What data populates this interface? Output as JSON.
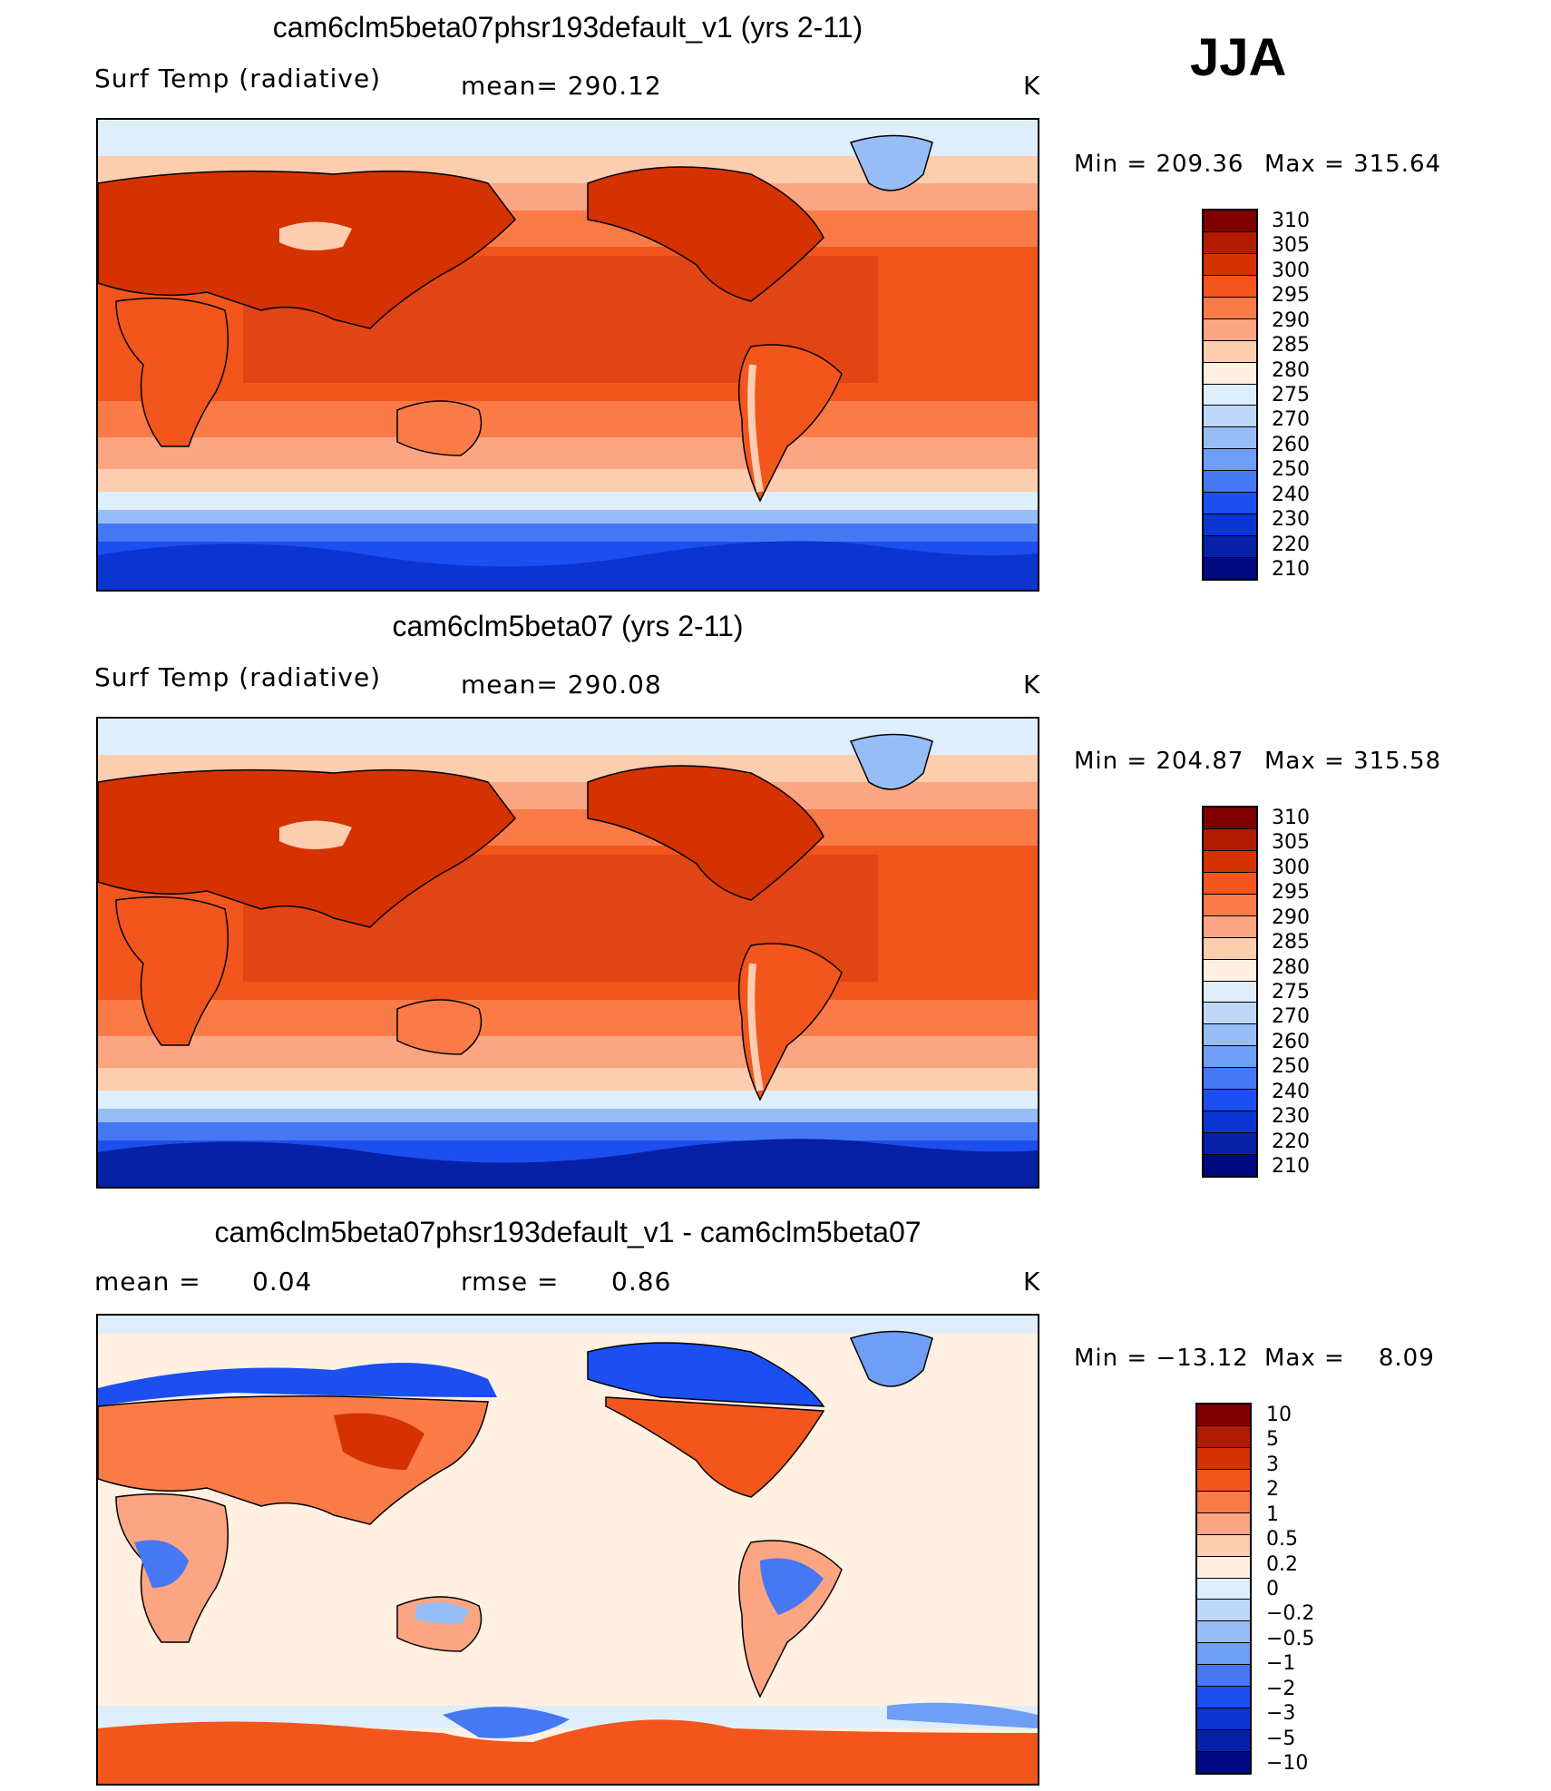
{
  "season": "JJA",
  "colors": {
    "temp_scale": [
      "#7f0000",
      "#b11c00",
      "#d43200",
      "#f2561c",
      "#fa7b48",
      "#fca583",
      "#fdcdb0",
      "#fff0e1",
      "#deeefa",
      "#bfd8fa",
      "#97bdf7",
      "#6e9ef6",
      "#4578f2",
      "#1c4ef0",
      "#0b34d0",
      "#0620a6",
      "#000a80"
    ],
    "diff_scale": [
      "#7f0000",
      "#b11c00",
      "#d43200",
      "#f2561c",
      "#fa7b48",
      "#fca583",
      "#fdcdb0",
      "#fff0e1",
      "#deeefa",
      "#bfd8fa",
      "#97bdf7",
      "#6e9ef6",
      "#4578f2",
      "#1c4ef0",
      "#0b34d0",
      "#0620a6",
      "#000a80"
    ]
  },
  "chart_data": [
    {
      "type": "heatmap",
      "title": "cam6clm5beta07phsr193default_v1 (yrs 2-11)",
      "variable": "Surf Temp (radiative)",
      "mean_text": "mean= 290.12",
      "units": "K",
      "min_text": "Min = 209.36",
      "max_text": "Max = 315.64",
      "min": 209.36,
      "max": 315.64,
      "mean": 290.12,
      "colorbar_levels": [
        "310",
        "305",
        "300",
        "295",
        "290",
        "285",
        "280",
        "275",
        "270",
        "260",
        "250",
        "240",
        "230",
        "220",
        "210"
      ],
      "projection": "global cylindrical, Pacific-centered"
    },
    {
      "type": "heatmap",
      "title": "cam6clm5beta07 (yrs 2-11)",
      "variable": "Surf Temp (radiative)",
      "mean_text": "mean= 290.08",
      "units": "K",
      "min_text": "Min = 204.87",
      "max_text": "Max = 315.58",
      "min": 204.87,
      "max": 315.58,
      "mean": 290.08,
      "colorbar_levels": [
        "310",
        "305",
        "300",
        "295",
        "290",
        "285",
        "280",
        "275",
        "270",
        "260",
        "250",
        "240",
        "230",
        "220",
        "210"
      ],
      "projection": "global cylindrical, Pacific-centered"
    },
    {
      "type": "heatmap",
      "title": "cam6clm5beta07phsr193default_v1 - cam6clm5beta07",
      "mean_label": "mean =",
      "mean_value": "0.04",
      "rmse_label": "rmse =",
      "rmse_value": "0.86",
      "units": "K",
      "min_text": "Min = −13.12",
      "max_text": "Max =    8.09",
      "min": -13.12,
      "max": 8.09,
      "mean": 0.04,
      "rmse": 0.86,
      "colorbar_levels": [
        "10",
        "5",
        "3",
        "2",
        "1",
        "0.5",
        "0.2",
        "0",
        "−0.2",
        "−0.5",
        "−1",
        "−2",
        "−3",
        "−5",
        "−10"
      ],
      "projection": "global cylindrical, Pacific-centered"
    }
  ]
}
